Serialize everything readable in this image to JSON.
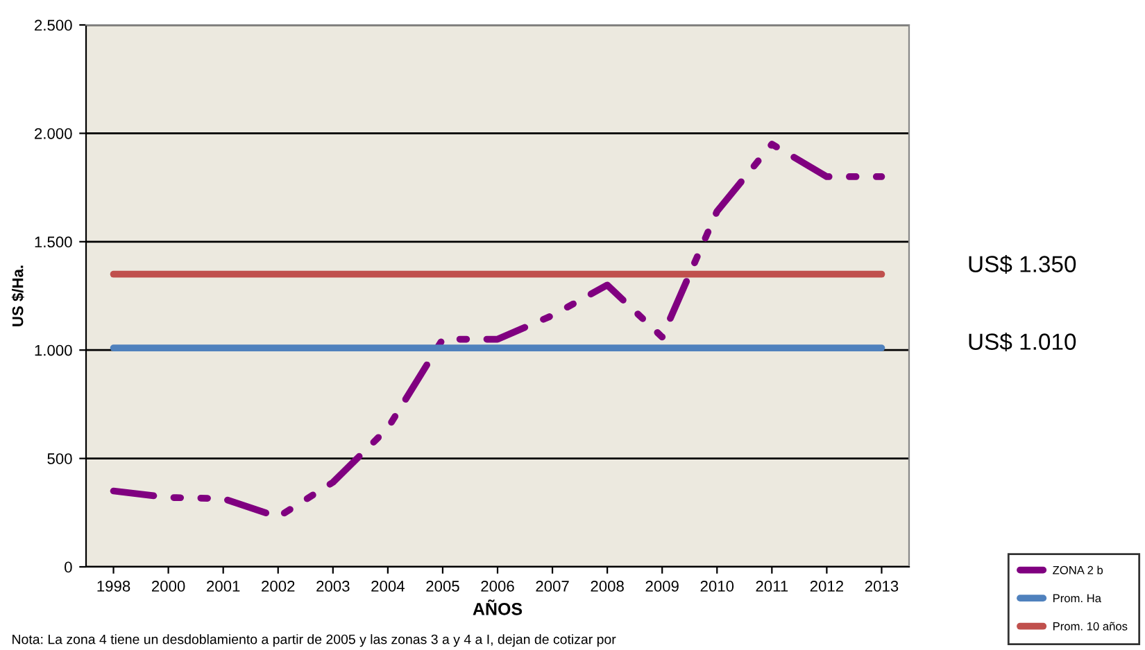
{
  "chart_data": {
    "type": "line",
    "xlabel": "AÑOS",
    "ylabel": "US $/Ha.",
    "categories": [
      "1998",
      "2000",
      "2001",
      "2002",
      "2003",
      "2004",
      "2005",
      "2006",
      "2007",
      "2008",
      "2009",
      "2010",
      "2011",
      "2012",
      "2013"
    ],
    "series": [
      {
        "name": "ZONA 2 b",
        "color": "#800080",
        "line_style": "dashed",
        "values": [
          350,
          320,
          315,
          230,
          390,
          640,
          1050,
          1050,
          1160,
          1300,
          1060,
          1640,
          1950,
          1800,
          1800
        ]
      },
      {
        "name": "Prom. Ha",
        "color": "#4f81bd",
        "line_style": "solid",
        "values": [
          1010,
          1010,
          1010,
          1010,
          1010,
          1010,
          1010,
          1010,
          1010,
          1010,
          1010,
          1010,
          1010,
          1010,
          1010
        ]
      },
      {
        "name": "Prom. 10 años",
        "color": "#c0504d",
        "line_style": "solid",
        "values": [
          1350,
          1350,
          1350,
          1350,
          1350,
          1350,
          1350,
          1350,
          1350,
          1350,
          1350,
          1350,
          1350,
          1350,
          1350
        ]
      }
    ],
    "ylim": [
      0,
      2500
    ],
    "yticks": [
      {
        "value": 0,
        "label": "0"
      },
      {
        "value": 500,
        "label": "500"
      },
      {
        "value": 1000,
        "label": "1.000"
      },
      {
        "value": 1500,
        "label": "1.500"
      },
      {
        "value": 2000,
        "label": "2.000"
      },
      {
        "value": 2500,
        "label": "2.500"
      }
    ],
    "grid": "y",
    "legend": "bottom right",
    "annotations": [
      "US$ 1.350",
      "US$ 1.010",
      "Nota: La zona 4 tiene un desdoblamiento a partir de 2005 y las zonas 3 a y 4 a I, dejan de cotizar por"
    ]
  }
}
